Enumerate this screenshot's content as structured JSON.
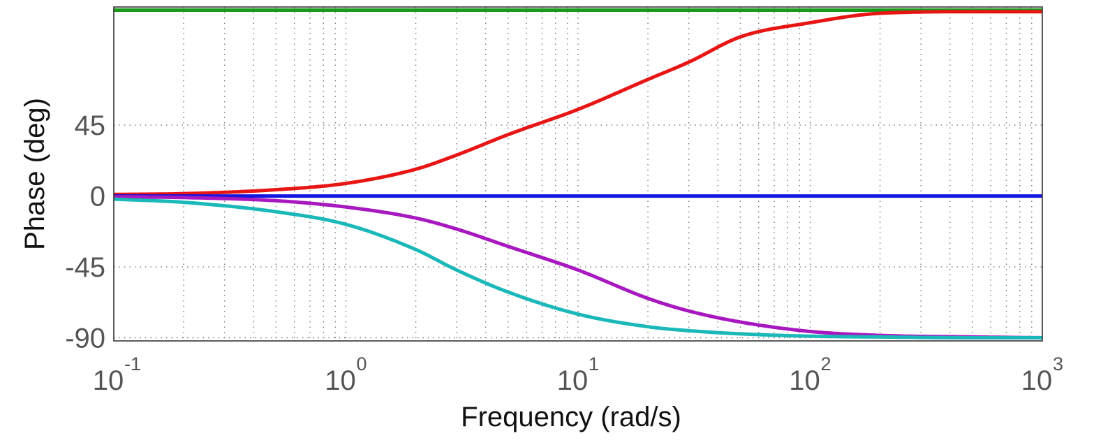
{
  "chart_data": {
    "type": "line",
    "title": "",
    "xlabel": "Frequency  (rad/s)",
    "ylabel": "Phase (deg)",
    "x_scale": "log",
    "xlim": [
      0.1,
      1000
    ],
    "ylim": [
      -92,
      120
    ],
    "grid": true,
    "legend": "none",
    "x_ticks": [
      {
        "base": "10",
        "exp": "-1",
        "value": 0.1
      },
      {
        "base": "10",
        "exp": "0",
        "value": 1
      },
      {
        "base": "10",
        "exp": "1",
        "value": 10
      },
      {
        "base": "10",
        "exp": "2",
        "value": 100
      },
      {
        "base": "10",
        "exp": "3",
        "value": 1000
      }
    ],
    "y_ticks": [
      {
        "label": "45",
        "value": 45
      },
      {
        "label": "0",
        "value": 0
      },
      {
        "label": "-45",
        "value": -45
      },
      {
        "label": "-90",
        "value": -90
      }
    ],
    "x": [
      0.1,
      0.2,
      0.5,
      1,
      2,
      3,
      5,
      10,
      20,
      30,
      50,
      100,
      200,
      500,
      1000
    ],
    "series": [
      {
        "color": "#1a9a1a",
        "values": [
          118,
          118,
          118,
          118,
          118,
          118,
          118,
          118,
          118,
          118,
          118,
          118,
          118,
          118,
          118
        ]
      },
      {
        "color": "#e81515",
        "values": [
          1,
          1.5,
          4,
          8,
          17,
          26,
          39,
          55,
          74,
          85,
          101,
          110,
          116,
          117,
          117
        ]
      },
      {
        "color": "#1515e0",
        "values": [
          0,
          0,
          0,
          0,
          0,
          0,
          0,
          0,
          0,
          0,
          0,
          0,
          0,
          0,
          0
        ]
      },
      {
        "color": "#a818c0",
        "values": [
          -0.5,
          -1,
          -3,
          -7,
          -14,
          -21,
          -32,
          -47,
          -65,
          -73,
          -80,
          -86,
          -88.5,
          -89.5,
          -90
        ]
      },
      {
        "color": "#1ab8b8",
        "values": [
          -2,
          -4,
          -10,
          -18,
          -34,
          -47,
          -61,
          -75,
          -83,
          -85.5,
          -87.5,
          -89,
          -89.5,
          -90,
          -90
        ]
      }
    ]
  }
}
